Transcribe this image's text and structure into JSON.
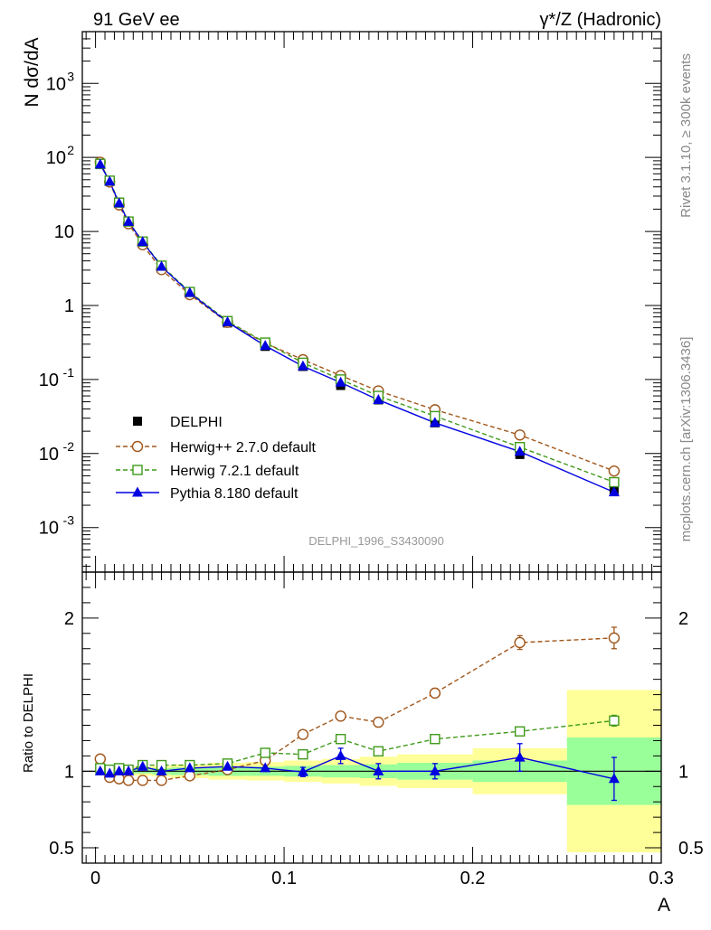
{
  "header": {
    "left": "91 GeV ee",
    "right": "γ*/Z (Hadronic)"
  },
  "side_labels": {
    "rivet": "Rivet 3.1.10, ≥ 300k events",
    "mcplots": "mcplots.cern.ch [arXiv:1306.3436]"
  },
  "watermark": "DELPHI_1996_S3430090",
  "colors": {
    "data": "#000000",
    "herwigpp": "#a0561a",
    "herwig7": "#3f9a1a",
    "pythia": "#0000e0",
    "band_inner": "#99ff99",
    "band_outer": "#ffff99"
  },
  "chart_data": [
    {
      "type": "scatter",
      "panel": "main",
      "ylabel": "N dσ/dA",
      "yscale": "log",
      "xlim": [
        -0.007,
        0.3
      ],
      "ylim": [
        0.00025,
        5000
      ],
      "ytick_labels": [
        {
          "value": 0.001,
          "base": "10",
          "exp": "-3"
        },
        {
          "value": 0.01,
          "base": "10",
          "exp": "-2"
        },
        {
          "value": 0.1,
          "base": "10",
          "exp": "-1"
        },
        {
          "value": 1,
          "base": "1",
          "exp": ""
        },
        {
          "value": 10,
          "base": "10",
          "exp": ""
        },
        {
          "value": 100,
          "base": "10",
          "exp": "2"
        },
        {
          "value": 1000,
          "base": "10",
          "exp": "3"
        }
      ],
      "x": [
        0.0025,
        0.0075,
        0.0125,
        0.0175,
        0.025,
        0.035,
        0.05,
        0.07,
        0.09,
        0.11,
        0.13,
        0.15,
        0.18,
        0.225,
        0.275
      ],
      "series": [
        {
          "name": "DELPHI",
          "key": "data",
          "marker": "square-filled",
          "values": [
            80,
            48,
            24,
            13.5,
            7,
            3.3,
            1.45,
            0.58,
            0.28,
            0.15,
            0.083,
            0.053,
            0.026,
            0.0097,
            0.0031
          ]
        },
        {
          "name": "Herwig++ 2.7.0 default",
          "key": "herwigpp",
          "marker": "circle-open",
          "dash": true,
          "values": [
            86,
            46.5,
            22.8,
            12.7,
            6.6,
            3.05,
            1.4,
            0.59,
            0.31,
            0.185,
            0.113,
            0.07,
            0.039,
            0.0178,
            0.0058
          ]
        },
        {
          "name": "Herwig 7.2.1 default",
          "key": "herwig7",
          "marker": "square-open",
          "dash": true,
          "values": [
            82,
            48.5,
            24.5,
            13.6,
            7.3,
            3.45,
            1.52,
            0.615,
            0.315,
            0.168,
            0.1,
            0.06,
            0.032,
            0.0122,
            0.0041
          ]
        },
        {
          "name": "Pythia 8.180 default",
          "key": "pythia",
          "marker": "triangle-filled",
          "dash": false,
          "values": [
            80.5,
            47.2,
            24,
            13.5,
            7.2,
            3.35,
            1.48,
            0.595,
            0.285,
            0.151,
            0.091,
            0.053,
            0.026,
            0.0106,
            0.003
          ]
        }
      ]
    },
    {
      "type": "line",
      "panel": "ratio",
      "ylabel": "Ratio to DELPHI",
      "xlabel": "A",
      "xlim": [
        -0.007,
        0.3
      ],
      "ylim": [
        0.4,
        2.3
      ],
      "ytick_labels": [
        {
          "value": 0.5,
          "label": "0.5"
        },
        {
          "value": 1,
          "label": "1"
        },
        {
          "value": 2,
          "label": "2"
        }
      ],
      "xtick_labels": [
        {
          "value": 0,
          "label": "0"
        },
        {
          "value": 0.1,
          "label": "0.1"
        },
        {
          "value": 0.2,
          "label": "0.2"
        },
        {
          "value": 0.3,
          "label": "0.3"
        }
      ],
      "bins": [
        {
          "lo": 0.0,
          "hi": 0.005,
          "inner": 0.015,
          "outer": 0.025
        },
        {
          "lo": 0.005,
          "hi": 0.01,
          "inner": 0.015,
          "outer": 0.025
        },
        {
          "lo": 0.01,
          "hi": 0.015,
          "inner": 0.015,
          "outer": 0.025
        },
        {
          "lo": 0.015,
          "hi": 0.02,
          "inner": 0.015,
          "outer": 0.025
        },
        {
          "lo": 0.02,
          "hi": 0.03,
          "inner": 0.015,
          "outer": 0.03
        },
        {
          "lo": 0.03,
          "hi": 0.04,
          "inner": 0.02,
          "outer": 0.035
        },
        {
          "lo": 0.04,
          "hi": 0.06,
          "inner": 0.025,
          "outer": 0.045
        },
        {
          "lo": 0.06,
          "hi": 0.08,
          "inner": 0.03,
          "outer": 0.055
        },
        {
          "lo": 0.08,
          "hi": 0.1,
          "inner": 0.03,
          "outer": 0.06
        },
        {
          "lo": 0.1,
          "hi": 0.12,
          "inner": 0.035,
          "outer": 0.07
        },
        {
          "lo": 0.12,
          "hi": 0.14,
          "inner": 0.04,
          "outer": 0.08
        },
        {
          "lo": 0.14,
          "hi": 0.16,
          "inner": 0.045,
          "outer": 0.095
        },
        {
          "lo": 0.16,
          "hi": 0.2,
          "inner": 0.055,
          "outer": 0.11
        },
        {
          "lo": 0.2,
          "hi": 0.25,
          "inner": 0.07,
          "outer": 0.15
        },
        {
          "lo": 0.25,
          "hi": 0.3,
          "inner": 0.22,
          "outer": 0.53
        }
      ],
      "x": [
        0.0025,
        0.0075,
        0.0125,
        0.0175,
        0.025,
        0.035,
        0.05,
        0.07,
        0.09,
        0.11,
        0.13,
        0.15,
        0.18,
        0.225,
        0.275
      ],
      "series": [
        {
          "name": "Herwig++ 2.7.0 default",
          "key": "herwigpp",
          "marker": "circle-open",
          "dash": true,
          "values": [
            1.08,
            0.96,
            0.95,
            0.94,
            0.94,
            0.94,
            0.97,
            1.01,
            1.07,
            1.24,
            1.36,
            1.32,
            1.51,
            1.84,
            1.87
          ],
          "errors": [
            0,
            0,
            0,
            0,
            0,
            0,
            0,
            0,
            0,
            0.01,
            0.015,
            0.03,
            0.03,
            0.045,
            0.07
          ]
        },
        {
          "name": "Herwig 7.2.1 default",
          "key": "herwig7",
          "marker": "square-open",
          "dash": true,
          "values": [
            1.02,
            1.01,
            1.02,
            1.01,
            1.04,
            1.04,
            1.04,
            1.05,
            1.12,
            1.11,
            1.21,
            1.13,
            1.21,
            1.26,
            1.33
          ],
          "errors": [
            0,
            0,
            0,
            0,
            0,
            0,
            0,
            0,
            0,
            0,
            0.015,
            0.01,
            0,
            0.015,
            0.035
          ]
        },
        {
          "name": "Pythia 8.180 default",
          "key": "pythia",
          "marker": "triangle-filled",
          "dash": false,
          "values": [
            1.0,
            0.985,
            1.0,
            1.0,
            1.03,
            1.0,
            1.02,
            1.03,
            1.02,
            0.995,
            1.1,
            1.0,
            1.0,
            1.09,
            0.95
          ],
          "errors": [
            0,
            0,
            0,
            0,
            0,
            0,
            0,
            0,
            0.02,
            0.03,
            0.05,
            0.05,
            0.05,
            0.09,
            0.14
          ]
        }
      ]
    }
  ]
}
